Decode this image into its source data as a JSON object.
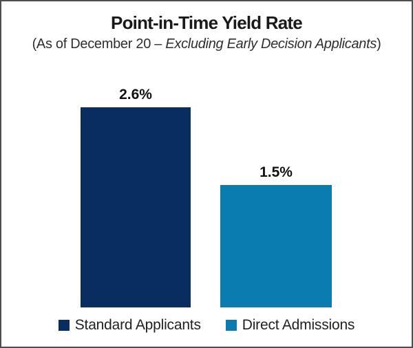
{
  "frame": {
    "background": "#ffffff",
    "border_color": "#4d4d4d"
  },
  "title": "Point-in-Time Yield Rate",
  "subtitle": {
    "prefix": "(As of December 20 – ",
    "italic": "Excluding Early Decision Applicants",
    "suffix": ")"
  },
  "chart_data": {
    "type": "bar",
    "title": "Point-in-Time Yield Rate",
    "subtitle": "(As of December 20 – Excluding Early Decision Applicants)",
    "categories": [
      "Standard Applicants",
      "Direct Admissions"
    ],
    "values": [
      2.6,
      1.5
    ],
    "value_labels": [
      "2.6%",
      "1.5%"
    ],
    "series_colors": [
      "#082d5e",
      "#0a7cb0"
    ],
    "value_label_color": "#111111",
    "ylim": [
      0,
      2.7
    ],
    "xlabel": "",
    "ylabel": "",
    "grid": false,
    "axes_visible": false,
    "legend_position": "bottom",
    "legend": [
      "Standard Applicants",
      "Direct Admissions"
    ]
  }
}
